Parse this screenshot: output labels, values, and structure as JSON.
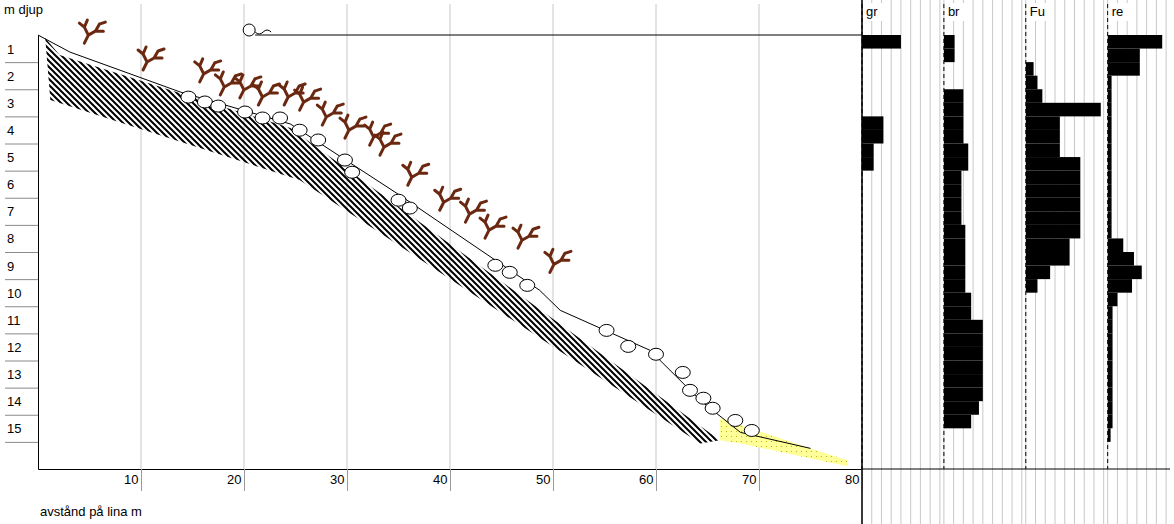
{
  "chart_data": {
    "type": "transect",
    "y_label": "m djup",
    "x_label": "avstånd på lina m",
    "xlim": [
      0,
      80
    ],
    "xticks": [
      10,
      20,
      30,
      40,
      50,
      60,
      70,
      80
    ],
    "ylim": [
      0,
      16
    ],
    "yticks": [
      1,
      2,
      3,
      4,
      5,
      6,
      7,
      8,
      9,
      10,
      11,
      12,
      13,
      14,
      15
    ],
    "grid": true,
    "profile": {
      "color": "#000000",
      "x": [
        0,
        3.1,
        13.8,
        24.5,
        35.1,
        48.7,
        50.7,
        59.4,
        64.3,
        68.2,
        75
      ],
      "depth": [
        0,
        0.63,
        2.1,
        3.28,
        5.9,
        9.41,
        10.15,
        11.62,
        13.47,
        14.65,
        15.24
      ]
    },
    "rock": {
      "color": "#000000",
      "x": [
        0.7,
        2.1,
        24.5,
        66.2,
        64.3,
        25.4,
        1.2
      ],
      "depth": [
        0.11,
        0.74,
        3.43,
        14.94,
        15.06,
        5.35,
        2.4
      ]
    },
    "sediment": {
      "color": "#ffff99",
      "x": [
        66.2,
        75,
        78.6,
        78.6,
        68.2,
        66.2
      ],
      "depth": [
        14.13,
        15.24,
        15.68,
        15.9,
        15.06,
        14.94
      ]
    },
    "boulders": {
      "color": "#ffffff",
      "x": [
        14.6,
        16.2,
        17.5,
        20.1,
        21.8,
        23.5,
        25.4,
        27.2,
        29.8,
        30.5,
        35,
        36.1,
        44.4,
        45.8,
        47.5,
        55.2,
        57.3,
        60,
        62.6,
        63.3,
        64.6,
        65.5,
        67.7,
        69.3
      ],
      "depth": [
        2.29,
        2.47,
        2.62,
        2.84,
        3.06,
        3.06,
        3.51,
        3.87,
        4.61,
        5.06,
        6.09,
        6.38,
        8.49,
        8.75,
        9.23,
        10.89,
        11.48,
        11.77,
        12.44,
        13.1,
        13.39,
        13.76,
        14.21,
        14.58
      ]
    },
    "algae": {
      "color": "#6b2810",
      "x": [
        4.5,
        10.2,
        15.7,
        17.7,
        19.6,
        21.4,
        23.9,
        25.4,
        27.6,
        29.8,
        32.2,
        33.2,
        35.9,
        39,
        41.5,
        43.4,
        46.6,
        49.7
      ],
      "depth": [
        0.3,
        1.29,
        1.73,
        2.21,
        2.32,
        2.58,
        2.58,
        2.77,
        3.32,
        3.8,
        4.06,
        4.43,
        5.54,
        6.46,
        6.9,
        7.49,
        7.86,
        8.75
      ]
    },
    "buoy": {
      "x": 20.5,
      "depth": 0
    },
    "bins": [
      0,
      0.5,
      1,
      1.5,
      2,
      2.5,
      3,
      3.5,
      4,
      4.5,
      5,
      5.5,
      6,
      6.5,
      7,
      7.5,
      8,
      8.5,
      9,
      9.5,
      10,
      10.5,
      11,
      11.5,
      12,
      12.5,
      13,
      13.5,
      14,
      14.5,
      15,
      15.5
    ],
    "columns": [
      {
        "name": "gr",
        "color": "#000000",
        "xlim": [
          0,
          8
        ],
        "xticks": [
          0,
          1,
          2,
          3,
          4,
          5,
          6,
          7,
          8
        ],
        "values": [
          4,
          0,
          0,
          0,
          0,
          0,
          2.2,
          2.2,
          1.2,
          1.2,
          0,
          0,
          0,
          0,
          0,
          0,
          0,
          0,
          0,
          0,
          0,
          0,
          0,
          0,
          0,
          0,
          0,
          0,
          0,
          0,
          0
        ]
      },
      {
        "name": "br",
        "color": "#000000",
        "xlim": [
          0,
          8
        ],
        "xticks": [
          0,
          1,
          2,
          3,
          4,
          5,
          6,
          7,
          8
        ],
        "values": [
          1.1,
          1.1,
          0,
          0,
          2,
          2,
          2,
          2,
          2.5,
          2.5,
          1.8,
          1.8,
          1.8,
          1.8,
          2.2,
          2.2,
          2.2,
          2.2,
          2.2,
          2.8,
          2.8,
          4,
          4,
          4,
          4,
          4,
          4,
          3.6,
          2.8,
          0,
          0
        ]
      },
      {
        "name": "Fu",
        "color": "#000000",
        "xlim": [
          0,
          8
        ],
        "xticks": [
          0,
          1,
          2,
          3,
          4,
          5,
          6,
          7,
          8
        ],
        "values": [
          0,
          0,
          0.8,
          1.2,
          1.7,
          7.7,
          3.5,
          3.5,
          3.5,
          5.6,
          5.6,
          5.6,
          5.6,
          5.6,
          5.6,
          4.5,
          4.5,
          2.5,
          1.2,
          0,
          0,
          0,
          0,
          0,
          0,
          0,
          0,
          0,
          0,
          0,
          0
        ]
      },
      {
        "name": "re",
        "color": "#000000",
        "xlim": [
          0,
          6.4
        ],
        "xticks": [
          0,
          1,
          2,
          3,
          4,
          5,
          6
        ],
        "values": [
          5.6,
          3.3,
          3.3,
          0.4,
          0.4,
          0.4,
          0.4,
          0.4,
          0.4,
          0.4,
          0.4,
          0.4,
          0.4,
          0.4,
          0.4,
          1.6,
          2.7,
          3.5,
          2.5,
          1.0,
          0.5,
          0.5,
          0.5,
          0.5,
          0.5,
          0.5,
          0.5,
          0.5,
          0.5,
          0.3,
          0
        ]
      }
    ]
  }
}
